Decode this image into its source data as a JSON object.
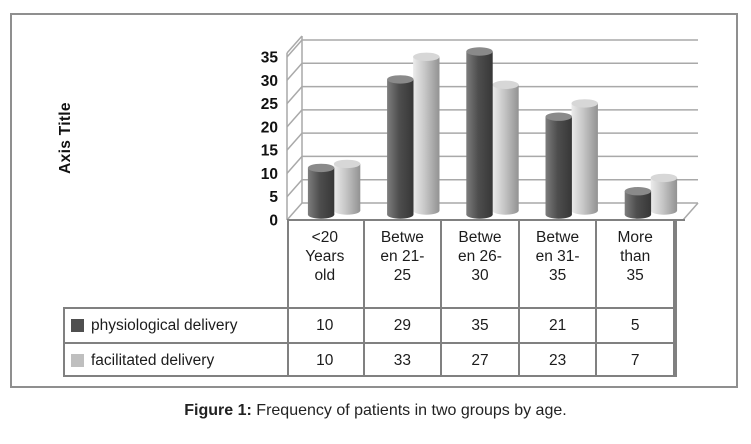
{
  "figure": {
    "axis_title": "Axis Title",
    "caption": {
      "label": "Figure 1:",
      "text": " Frequency of patients in two groups by age."
    }
  },
  "chart_data": {
    "type": "bar",
    "render_style": "3d-cylinder",
    "title": "",
    "xlabel": "",
    "ylabel": "Axis Title",
    "ylim": [
      0,
      35
    ],
    "ytick_step": 5,
    "yticks": [
      0,
      5,
      10,
      15,
      20,
      25,
      30,
      35
    ],
    "grid": true,
    "legend_position": "data-table-left",
    "categories": [
      "<20 Years old",
      "Between 21-25",
      "Between 26-30",
      "Between 31-35",
      "More than 35"
    ],
    "category_label_lines": [
      [
        "<20",
        "Years",
        "old"
      ],
      [
        "Betwe",
        "en 21-",
        "25"
      ],
      [
        "Betwe",
        "en 26-",
        "30"
      ],
      [
        "Betwe",
        "en 31-",
        "35"
      ],
      [
        "More",
        "than",
        "35"
      ]
    ],
    "series": [
      {
        "name": "physiological delivery",
        "color": "#4f4f4f",
        "values": [
          10,
          29,
          35,
          21,
          5
        ]
      },
      {
        "name": "facilitated delivery",
        "color": "#bfbfbf",
        "values": [
          10,
          33,
          27,
          23,
          7
        ]
      }
    ]
  }
}
